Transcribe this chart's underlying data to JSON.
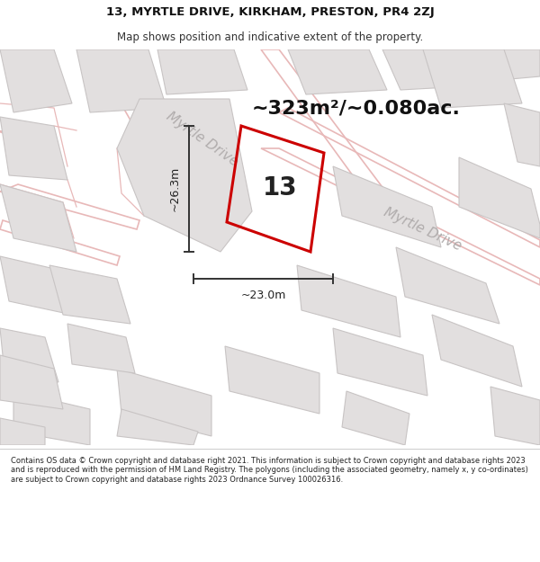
{
  "title_line1": "13, MYRTLE DRIVE, KIRKHAM, PRESTON, PR4 2ZJ",
  "title_line2": "Map shows position and indicative extent of the property.",
  "footer_text": "Contains OS data © Crown copyright and database right 2021. This information is subject to Crown copyright and database rights 2023 and is reproduced with the permission of HM Land Registry. The polygons (including the associated geometry, namely x, y co-ordinates) are subject to Crown copyright and database rights 2023 Ordnance Survey 100026316.",
  "area_text": "~323m²/~0.080ac.",
  "number_text": "13",
  "dim_horizontal": "~23.0m",
  "dim_vertical": "~26.3m",
  "road_label_upper": "Myrtle Drive",
  "road_label_lower": "Myrtle Drive",
  "map_bg_color": "#f2f0f0",
  "building_fill": "#e2dfdf",
  "building_edge": "#c8c4c4",
  "road_fill": "#ffffff",
  "plot_line_color": "#cc0000",
  "dim_line_color": "#333333",
  "road_label_color": "#b0acac",
  "street_outline_color": "#e8b8b8",
  "title_fontsize": 9.5,
  "subtitle_fontsize": 8.5,
  "area_fontsize": 16,
  "number_fontsize": 20,
  "dim_fontsize": 9,
  "road_label_fontsize": 11
}
